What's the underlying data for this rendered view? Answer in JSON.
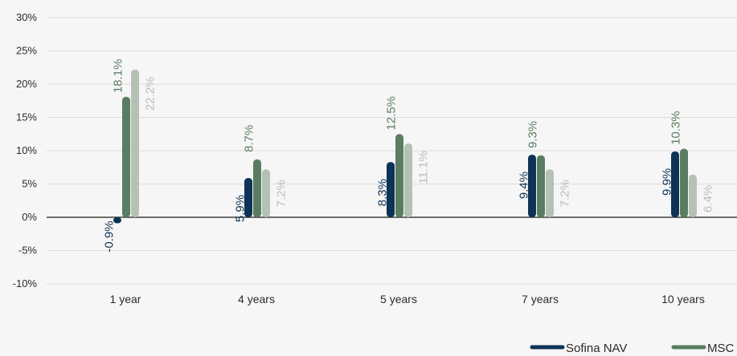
{
  "chart_data": {
    "type": "bar",
    "categories": [
      "1 year",
      "4 years",
      "5 years",
      "7 years",
      "10 years"
    ],
    "series": [
      {
        "name": "Sofina NAV",
        "color": "#0d3456",
        "values": [
          -0.9,
          5.9,
          8.3,
          9.4,
          9.9
        ],
        "labels": [
          "-0.9%",
          "5.9%",
          "8.3%",
          "9.4%",
          "9.9%"
        ]
      },
      {
        "name": "MSC",
        "color": "#5a7d62",
        "values": [
          18.1,
          8.7,
          12.5,
          9.3,
          10.3
        ],
        "labels": [
          "18.1%",
          "8.7%",
          "12.5%",
          "9.3%",
          "10.3%"
        ]
      },
      {
        "name": "",
        "color": "#b4c2b4",
        "values": [
          22.2,
          7.2,
          11.1,
          7.2,
          6.4
        ],
        "labels": [
          "22.2%",
          "7.2%",
          "11.1%",
          "7.2%",
          "6.4%"
        ]
      }
    ],
    "ylim": [
      -10,
      30
    ],
    "yticks": [
      30,
      25,
      20,
      15,
      10,
      5,
      0,
      -5,
      -10
    ],
    "ytick_labels": [
      "30%",
      "25%",
      "20%",
      "15%",
      "10%",
      "5%",
      "0%",
      "-5%",
      "-10%"
    ],
    "grid": true,
    "legend_position": "bottom-right",
    "title": "",
    "xlabel": "",
    "ylabel": ""
  }
}
